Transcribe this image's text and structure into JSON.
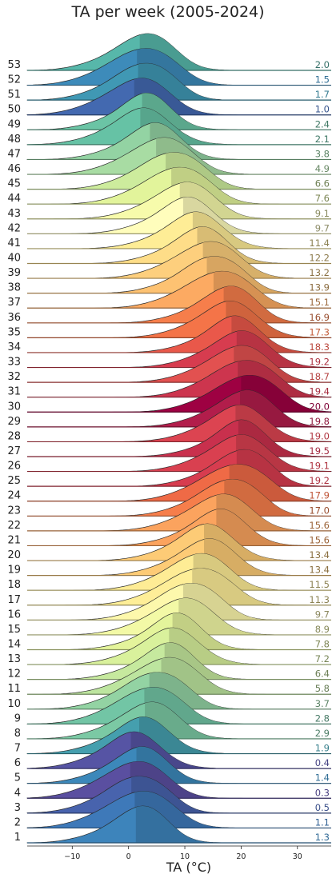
{
  "chart_data": {
    "type": "ridgeline",
    "title": "TA per week (2005-2024)",
    "xlabel": "TA (°C)",
    "ylabel": "",
    "xlim": [
      -18,
      36
    ],
    "xticks": [
      -10,
      0,
      10,
      20,
      30
    ],
    "grid": false,
    "legend": "none",
    "series": [
      {
        "name": "1",
        "mean": 1.3,
        "color": "#3d84bb"
      },
      {
        "name": "2",
        "mean": 1.1,
        "color": "#3e79b9"
      },
      {
        "name": "3",
        "mean": 0.5,
        "color": "#4863ad"
      },
      {
        "name": "4",
        "mean": 0.3,
        "color": "#5a4fa0"
      },
      {
        "name": "5",
        "mean": 1.4,
        "color": "#3c88ba"
      },
      {
        "name": "6",
        "mean": 0.4,
        "color": "#5654a4"
      },
      {
        "name": "7",
        "mean": 1.9,
        "color": "#459fae"
      },
      {
        "name": "8",
        "mean": 2.9,
        "color": "#7bc9a4"
      },
      {
        "name": "9",
        "mean": 2.8,
        "color": "#72c5a5"
      },
      {
        "name": "10",
        "mean": 3.7,
        "color": "#93d3a3"
      },
      {
        "name": "11",
        "mean": 5.8,
        "color": "#bde59f"
      },
      {
        "name": "12",
        "mean": 6.4,
        "color": "#c6e99e"
      },
      {
        "name": "13",
        "mean": 7.2,
        "color": "#d9f19c"
      },
      {
        "name": "14",
        "mean": 7.8,
        "color": "#e4f49b"
      },
      {
        "name": "15",
        "mean": 8.9,
        "color": "#f3f9a6"
      },
      {
        "name": "16",
        "mean": 9.7,
        "color": "#fdf8ac"
      },
      {
        "name": "17",
        "mean": 11.3,
        "color": "#feee98"
      },
      {
        "name": "18",
        "mean": 11.5,
        "color": "#feec95"
      },
      {
        "name": "19",
        "mean": 13.4,
        "color": "#fdcb76"
      },
      {
        "name": "20",
        "mean": 13.4,
        "color": "#fdcb76"
      },
      {
        "name": "21",
        "mean": 15.6,
        "color": "#fba35e"
      },
      {
        "name": "22",
        "mean": 15.6,
        "color": "#fba35e"
      },
      {
        "name": "23",
        "mean": 17.0,
        "color": "#f67e4b"
      },
      {
        "name": "24",
        "mean": 17.9,
        "color": "#ef6a46"
      },
      {
        "name": "25",
        "mean": 19.2,
        "color": "#d73c4f"
      },
      {
        "name": "26",
        "mean": 19.1,
        "color": "#d94050"
      },
      {
        "name": "27",
        "mean": 19.5,
        "color": "#c9304d"
      },
      {
        "name": "28",
        "mean": 19.0,
        "color": "#dc4451"
      },
      {
        "name": "29",
        "mean": 19.8,
        "color": "#b21d4b"
      },
      {
        "name": "30",
        "mean": 20.0,
        "color": "#9e0142"
      },
      {
        "name": "31",
        "mean": 19.4,
        "color": "#cd354e"
      },
      {
        "name": "32",
        "mean": 18.7,
        "color": "#e25150"
      },
      {
        "name": "33",
        "mean": 19.2,
        "color": "#d73c4f"
      },
      {
        "name": "34",
        "mean": 18.3,
        "color": "#e9584a"
      },
      {
        "name": "35",
        "mean": 17.3,
        "color": "#f47448"
      },
      {
        "name": "36",
        "mean": 16.9,
        "color": "#f67e4b"
      },
      {
        "name": "37",
        "mean": 15.1,
        "color": "#fcaa62"
      },
      {
        "name": "38",
        "mean": 13.9,
        "color": "#fdc272"
      },
      {
        "name": "39",
        "mean": 13.2,
        "color": "#fdcf7d"
      },
      {
        "name": "40",
        "mean": 12.2,
        "color": "#fedd88"
      },
      {
        "name": "41",
        "mean": 11.4,
        "color": "#feed96"
      },
      {
        "name": "42",
        "mean": 9.7,
        "color": "#fffdbc"
      },
      {
        "name": "43",
        "mean": 9.1,
        "color": "#f7fbab"
      },
      {
        "name": "44",
        "mean": 7.6,
        "color": "#e2f49b"
      },
      {
        "name": "45",
        "mean": 6.6,
        "color": "#cdec9d"
      },
      {
        "name": "46",
        "mean": 4.9,
        "color": "#a8dca3"
      },
      {
        "name": "47",
        "mean": 3.8,
        "color": "#93d3a3"
      },
      {
        "name": "48",
        "mean": 2.1,
        "color": "#66c2a5"
      },
      {
        "name": "49",
        "mean": 2.4,
        "color": "#6bc4a5"
      },
      {
        "name": "50",
        "mean": 1.0,
        "color": "#4369b0"
      },
      {
        "name": "51",
        "mean": 1.7,
        "color": "#4098b4"
      },
      {
        "name": "52",
        "mean": 1.5,
        "color": "#3d8bba"
      },
      {
        "name": "53",
        "mean": 2.0,
        "color": "#57b7aa"
      }
    ]
  }
}
